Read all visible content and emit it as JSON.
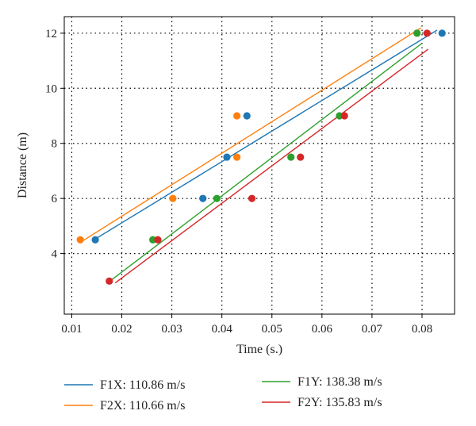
{
  "chart_data": {
    "type": "scatter",
    "title": "",
    "xlabel": "Time (s.)",
    "ylabel": "Distance (m)",
    "xlim": [
      0.0085,
      0.0865
    ],
    "ylim": [
      1.8,
      12.6
    ],
    "grid": true,
    "grid_style": "dotted",
    "legend_position": "bottom",
    "x_ticks": [
      0.01,
      0.02,
      0.03,
      0.04,
      0.05,
      0.06,
      0.07,
      0.08
    ],
    "x_tick_labels": [
      "0.01",
      "0.02",
      "0.03",
      "0.04",
      "0.05",
      "0.06",
      "0.07",
      "0.08"
    ],
    "y_ticks": [
      4,
      6,
      8,
      10,
      12
    ],
    "y_tick_labels": [
      "4",
      "6",
      "8",
      "10",
      "12"
    ],
    "series": [
      {
        "name": "F1X: 110.86 m/s",
        "color": "#1f77b4",
        "points": [
          [
            0.0147,
            4.5
          ],
          [
            0.0362,
            6.0
          ],
          [
            0.041,
            7.5
          ],
          [
            0.045,
            9.0
          ],
          [
            0.084,
            12.0
          ]
        ],
        "fit_x": [
          0.0147,
          0.083
        ]
      },
      {
        "name": "F2X: 110.66 m/s",
        "color": "#ff7f0e",
        "points": [
          [
            0.0117,
            4.5
          ],
          [
            0.0302,
            6.0
          ],
          [
            0.043,
            7.5
          ],
          [
            0.043,
            9.0
          ],
          [
            0.079,
            12.0
          ]
        ],
        "fit_x": [
          0.0117,
          0.0798
        ]
      },
      {
        "name": "F1Y: 138.38 m/s",
        "color": "#2ca02c",
        "points": [
          [
            0.0262,
            4.5
          ],
          [
            0.039,
            6.0
          ],
          [
            0.0538,
            7.5
          ],
          [
            0.0635,
            9.0
          ],
          [
            0.079,
            12.0
          ]
        ],
        "fit_x": [
          0.0178,
          0.08
        ]
      },
      {
        "name": "F2Y: 135.83 m/s",
        "color": "#d62728",
        "points": [
          [
            0.0175,
            3.0
          ],
          [
            0.0272,
            4.5
          ],
          [
            0.046,
            6.0
          ],
          [
            0.0557,
            7.5
          ],
          [
            0.0645,
            9.0
          ],
          [
            0.081,
            12.0
          ]
        ],
        "fit_x": [
          0.0187,
          0.0812
        ]
      }
    ]
  }
}
